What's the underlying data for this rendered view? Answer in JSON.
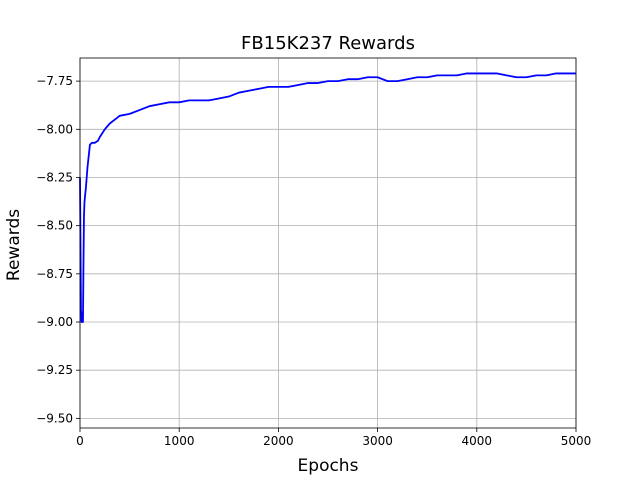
{
  "chart_data": {
    "type": "line",
    "title": "FB15K237 Rewards",
    "xlabel": "Epochs",
    "ylabel": "Rewards",
    "xlim": [
      0,
      5000
    ],
    "ylim": [
      -9.55,
      -7.63
    ],
    "x_ticks": [
      0,
      1000,
      2000,
      3000,
      4000,
      5000
    ],
    "x_tick_labels": [
      "0",
      "1000",
      "2000",
      "3000",
      "4000",
      "5000"
    ],
    "y_ticks": [
      -9.5,
      -9.25,
      -9.0,
      -8.75,
      -8.5,
      -8.25,
      -8.0,
      -7.75
    ],
    "y_tick_labels": [
      "−9.50",
      "−9.25",
      "−9.00",
      "−8.75",
      "−8.50",
      "−8.25",
      "−8.00",
      "−7.75"
    ],
    "grid": true,
    "colors": {
      "line": "#0000ff",
      "grid": "#b0b0b0",
      "axes": "#000000"
    },
    "series": [
      {
        "color": "#0000ff",
        "x": [
          0,
          5,
          10,
          15,
          20,
          25,
          30,
          35,
          40,
          45,
          50,
          60,
          75,
          100,
          120,
          150,
          180,
          200,
          250,
          300,
          350,
          400,
          500,
          600,
          700,
          800,
          900,
          1000,
          1100,
          1200,
          1300,
          1400,
          1500,
          1600,
          1700,
          1800,
          1900,
          2000,
          2100,
          2200,
          2300,
          2400,
          2500,
          2600,
          2700,
          2800,
          2900,
          3000,
          3100,
          3200,
          3300,
          3400,
          3500,
          3600,
          3700,
          3800,
          3900,
          4000,
          4100,
          4200,
          4300,
          4400,
          4500,
          4600,
          4700,
          4800,
          4900,
          5000
        ],
        "y": [
          -8.25,
          -8.6,
          -8.95,
          -9.0,
          -8.95,
          -9.0,
          -9.0,
          -8.7,
          -8.45,
          -8.38,
          -8.35,
          -8.3,
          -8.2,
          -8.08,
          -8.07,
          -8.07,
          -8.06,
          -8.04,
          -8.0,
          -7.97,
          -7.95,
          -7.93,
          -7.92,
          -7.9,
          -7.88,
          -7.87,
          -7.86,
          -7.86,
          -7.85,
          -7.85,
          -7.85,
          -7.84,
          -7.83,
          -7.81,
          -7.8,
          -7.79,
          -7.78,
          -7.78,
          -7.78,
          -7.77,
          -7.76,
          -7.76,
          -7.75,
          -7.75,
          -7.74,
          -7.74,
          -7.73,
          -7.73,
          -7.75,
          -7.75,
          -7.74,
          -7.73,
          -7.73,
          -7.72,
          -7.72,
          -7.72,
          -7.71,
          -7.71,
          -7.71,
          -7.71,
          -7.72,
          -7.73,
          -7.73,
          -7.72,
          -7.72,
          -7.71,
          -7.71,
          -7.71
        ]
      }
    ]
  }
}
